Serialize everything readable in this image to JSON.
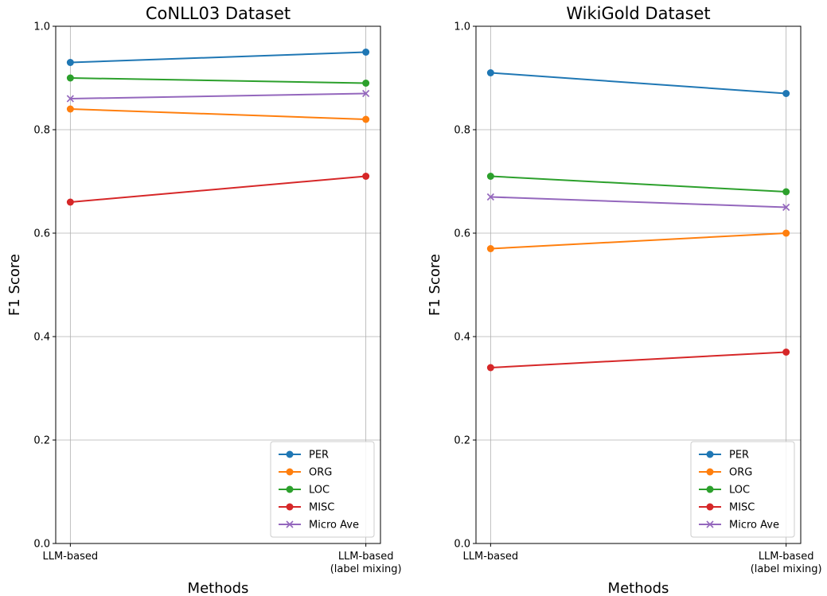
{
  "chart_data": [
    {
      "type": "line",
      "title": "CoNLL03 Dataset",
      "xlabel": "Methods",
      "ylabel": "F1 Score",
      "categories": [
        "LLM-based",
        "LLM-based\n(label mixing)"
      ],
      "ylim": [
        0.0,
        1.0
      ],
      "yticks": [
        "0.0",
        "0.2",
        "0.4",
        "0.6",
        "0.8",
        "1.0"
      ],
      "grid": true,
      "legend_position": "lower-right",
      "series": [
        {
          "name": "PER",
          "values": [
            0.93,
            0.95
          ],
          "color": "#1f77b4",
          "marker": "circle"
        },
        {
          "name": "ORG",
          "values": [
            0.84,
            0.82
          ],
          "color": "#ff7f0e",
          "marker": "circle"
        },
        {
          "name": "LOC",
          "values": [
            0.9,
            0.89
          ],
          "color": "#2ca02c",
          "marker": "circle"
        },
        {
          "name": "MISC",
          "values": [
            0.66,
            0.71
          ],
          "color": "#d62728",
          "marker": "circle"
        },
        {
          "name": "Micro Ave",
          "values": [
            0.86,
            0.87
          ],
          "color": "#9467bd",
          "marker": "x"
        }
      ]
    },
    {
      "type": "line",
      "title": "WikiGold Dataset",
      "xlabel": "Methods",
      "ylabel": "F1 Score",
      "categories": [
        "LLM-based",
        "LLM-based\n(label mixing)"
      ],
      "ylim": [
        0.0,
        1.0
      ],
      "yticks": [
        "0.0",
        "0.2",
        "0.4",
        "0.6",
        "0.8",
        "1.0"
      ],
      "grid": true,
      "legend_position": "lower-right",
      "series": [
        {
          "name": "PER",
          "values": [
            0.91,
            0.87
          ],
          "color": "#1f77b4",
          "marker": "circle"
        },
        {
          "name": "ORG",
          "values": [
            0.57,
            0.6
          ],
          "color": "#ff7f0e",
          "marker": "circle"
        },
        {
          "name": "LOC",
          "values": [
            0.71,
            0.68
          ],
          "color": "#2ca02c",
          "marker": "circle"
        },
        {
          "name": "MISC",
          "values": [
            0.34,
            0.37
          ],
          "color": "#d62728",
          "marker": "circle"
        },
        {
          "name": "Micro Ave",
          "values": [
            0.67,
            0.65
          ],
          "color": "#9467bd",
          "marker": "x"
        }
      ]
    }
  ]
}
